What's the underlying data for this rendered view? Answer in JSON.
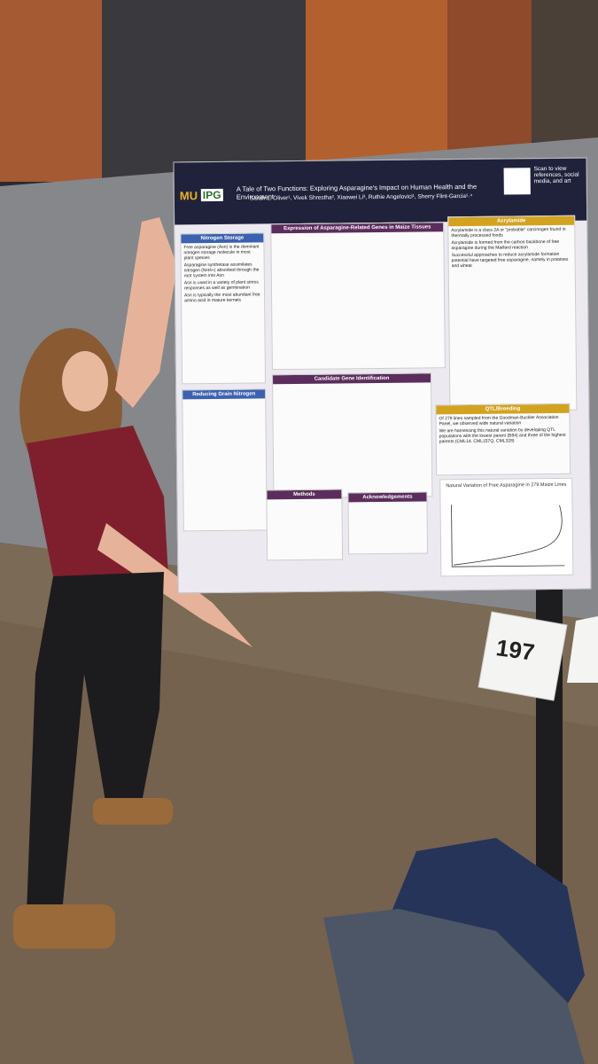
{
  "poster": {
    "logo_left": "MU",
    "logo_right": "IPG",
    "title": "A Tale of Two Functions: Exploring Asparagine's Impact on Human Health and the Environment",
    "authors": "Sarah L. Oliver¹, Vivek Shrestha², Xiaowei Li³, Ruthie Angelovici¹, Sherry Flint-Garcia¹˒⁴",
    "qr_caption": "Scan to view references, social media, and art",
    "sections": [
      {
        "heading": "Nitrogen Storage",
        "bullets": [
          "Free asparagine (Asn) is the dominant nitrogen storage molecule in most plant species",
          "Asparagine synthetase assimilates nitrogen (NH4+) absorbed through the root system into Asn",
          "Asn is used in a variety of plant stress responses as well as germination",
          "Asn is typically the most abundant free amino acid in mature kernels"
        ]
      },
      {
        "heading": "Reducing Grain Nitrogen"
      },
      {
        "heading": "Expression of Asparagine-Related Genes in Maize Tissues"
      },
      {
        "heading": "Candidate Gene Identification"
      },
      {
        "heading": "Methods"
      },
      {
        "heading": "Acknowledgements"
      },
      {
        "heading": "Acrylamide",
        "bullets": [
          "Acrylamide is a class 2A or \"probable\" carcinogen found in thermally processed foods",
          "Acrylamide is formed from the carbon backbone of free asparagine during the Maillard reaction",
          "Successful approaches to reduce acrylamide formation potential have targeted free asparagine, namely in potatoes and wheat"
        ]
      },
      {
        "heading": "QTL/Breeding",
        "bullets": [
          "Of 279 lines sampled from the Goodman-Buckler Association Panel, we observed wide natural variation",
          "We are harnessing this natural variation by developing QTL populations with the lowest parent (B84) and three of the highest parents (CML14, CML157Q, CML328)"
        ]
      }
    ],
    "chart_title": "Natural Variation of Free Asparagine in 279 Maize Lines"
  },
  "sign": {
    "number": "197"
  }
}
